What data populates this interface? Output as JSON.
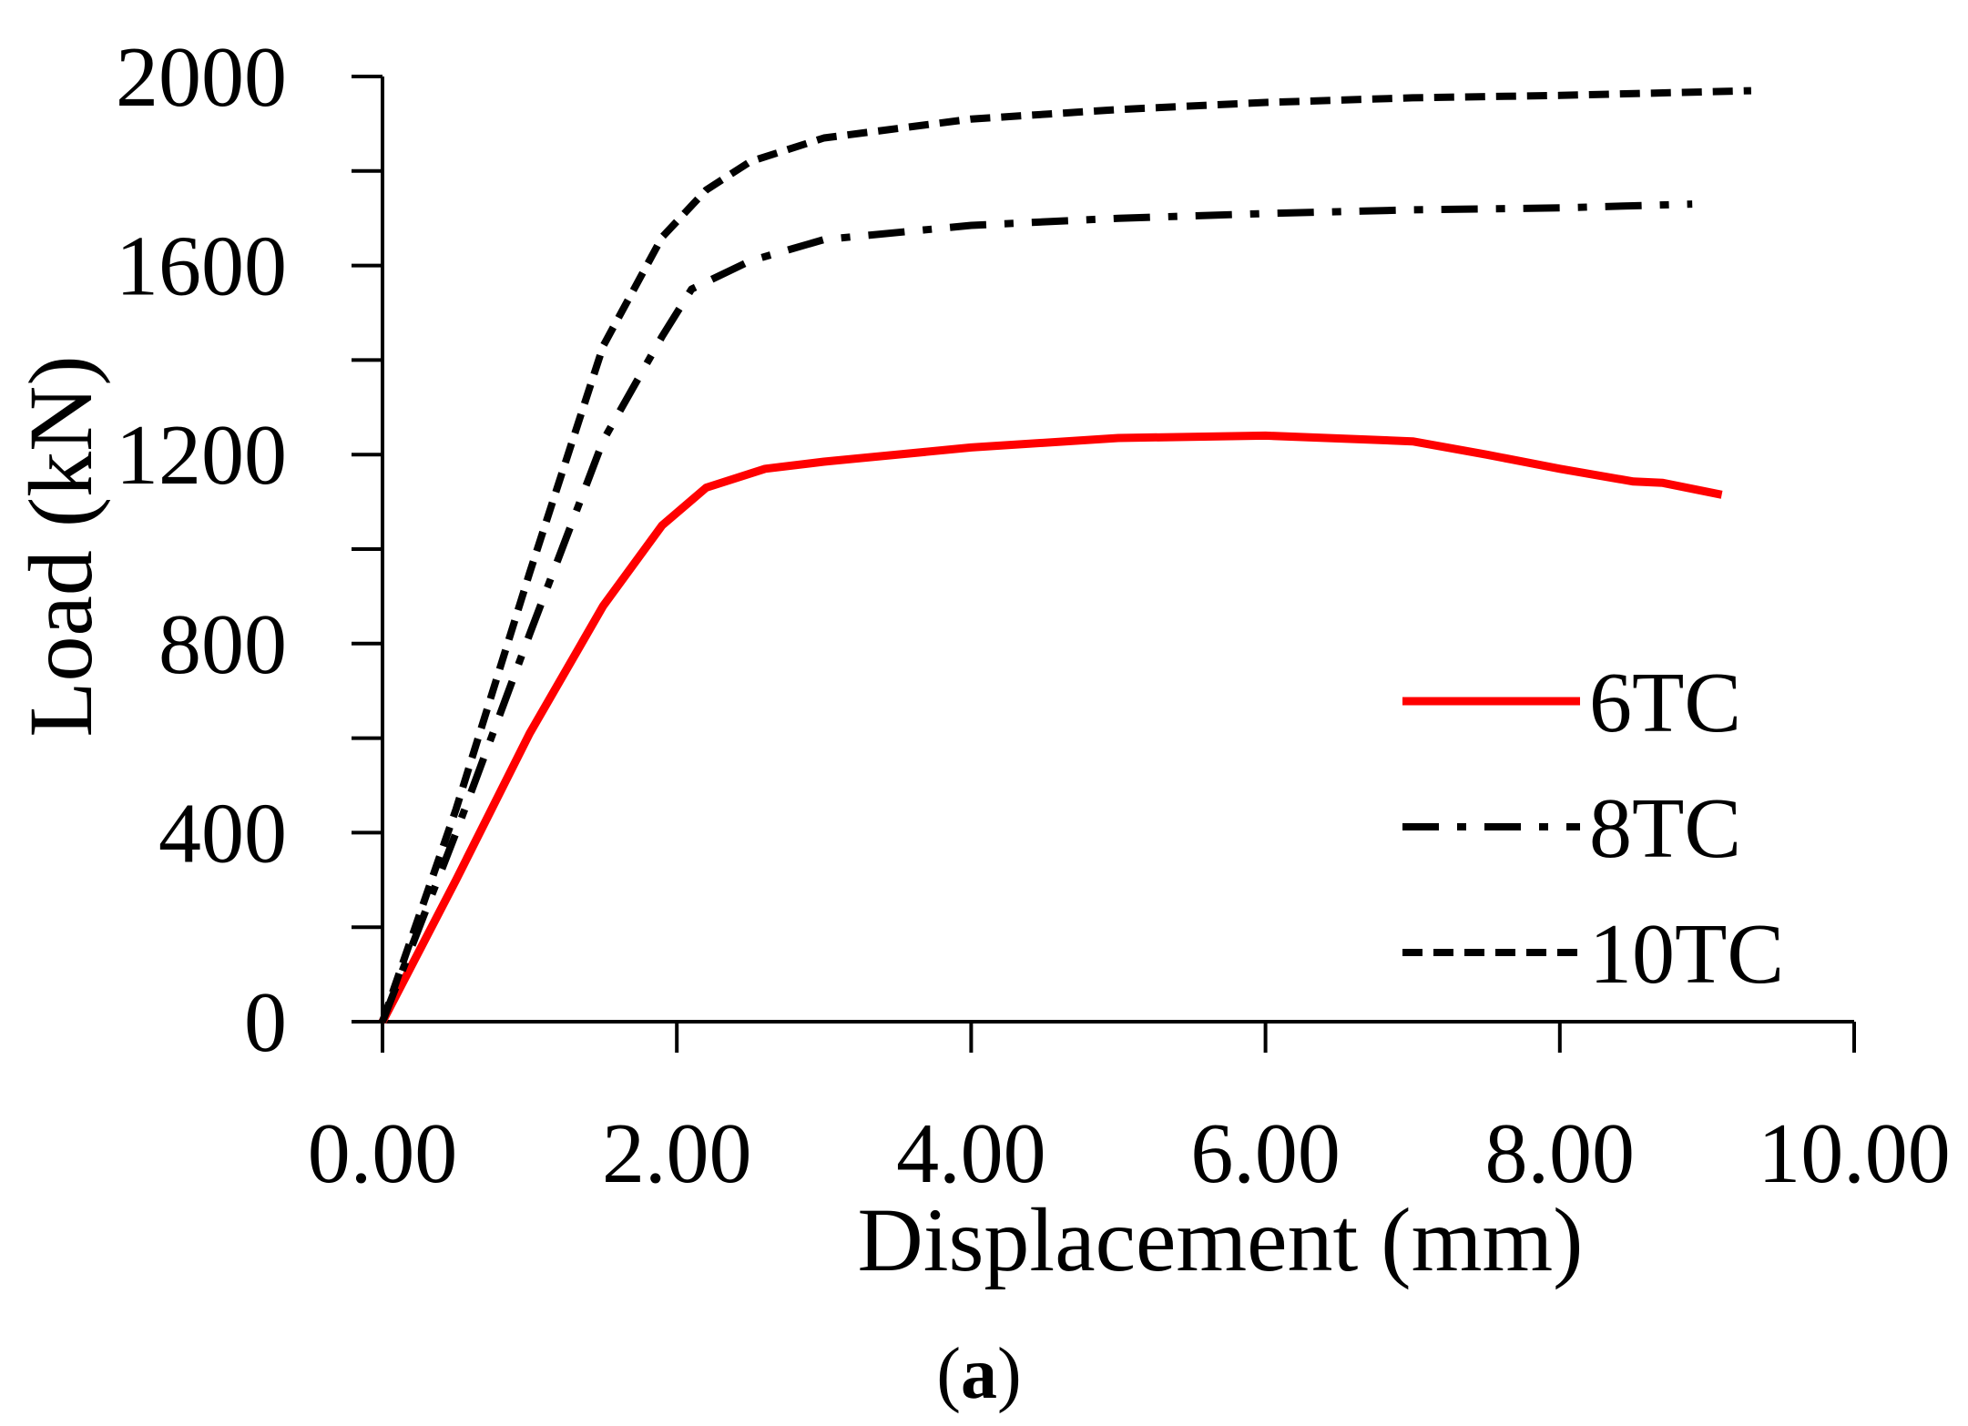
{
  "chart_data": {
    "type": "line",
    "title": "",
    "xlabel": "Displacement (mm)",
    "ylabel": "Load (kN)",
    "xlim": [
      0,
      10
    ],
    "ylim": [
      0,
      2000
    ],
    "x_ticks": [
      0,
      2,
      4,
      6,
      8,
      10
    ],
    "x_tick_labels": [
      "0.00",
      "2.00",
      "4.00",
      "6.00",
      "8.00",
      "10.00"
    ],
    "y_ticks": [
      0,
      400,
      800,
      1200,
      1600,
      2000
    ],
    "y_tick_labels": [
      "0",
      "400",
      "800",
      "1200",
      "1600",
      "2000"
    ],
    "y_minor_step": 200,
    "grid": false,
    "legend_position": "bottom-right",
    "caption": {
      "open": "(",
      "label": "a",
      "close": ")"
    },
    "series": [
      {
        "name": "6TC",
        "color": "#ff0000",
        "style": "solid",
        "points": [
          [
            0,
            0
          ],
          [
            0.5,
            300
          ],
          [
            1.0,
            610
          ],
          [
            1.5,
            880
          ],
          [
            1.9,
            1050
          ],
          [
            2.2,
            1130
          ],
          [
            2.6,
            1170
          ],
          [
            3.0,
            1185
          ],
          [
            4.0,
            1215
          ],
          [
            5.0,
            1235
          ],
          [
            6.0,
            1240
          ],
          [
            7.0,
            1228
          ],
          [
            7.5,
            1200
          ],
          [
            8.0,
            1170
          ],
          [
            8.5,
            1143
          ],
          [
            8.7,
            1140
          ],
          [
            9.1,
            1115
          ]
        ]
      },
      {
        "name": "8TC",
        "color": "#000000",
        "style": "dashdot",
        "points": [
          [
            0,
            0
          ],
          [
            0.5,
            400
          ],
          [
            1.0,
            820
          ],
          [
            1.5,
            1230
          ],
          [
            1.9,
            1450
          ],
          [
            2.1,
            1550
          ],
          [
            2.5,
            1610
          ],
          [
            3.0,
            1655
          ],
          [
            4.0,
            1685
          ],
          [
            5.0,
            1700
          ],
          [
            6.0,
            1710
          ],
          [
            7.0,
            1718
          ],
          [
            8.0,
            1722
          ],
          [
            8.9,
            1730
          ]
        ]
      },
      {
        "name": "10TC",
        "color": "#000000",
        "style": "dashed",
        "points": [
          [
            0,
            0
          ],
          [
            0.5,
            450
          ],
          [
            1.0,
            950
          ],
          [
            1.5,
            1430
          ],
          [
            1.9,
            1660
          ],
          [
            2.2,
            1760
          ],
          [
            2.5,
            1820
          ],
          [
            3.0,
            1870
          ],
          [
            4.0,
            1910
          ],
          [
            5.0,
            1930
          ],
          [
            6.0,
            1945
          ],
          [
            7.0,
            1955
          ],
          [
            8.0,
            1960
          ],
          [
            9.3,
            1970
          ]
        ]
      }
    ]
  }
}
